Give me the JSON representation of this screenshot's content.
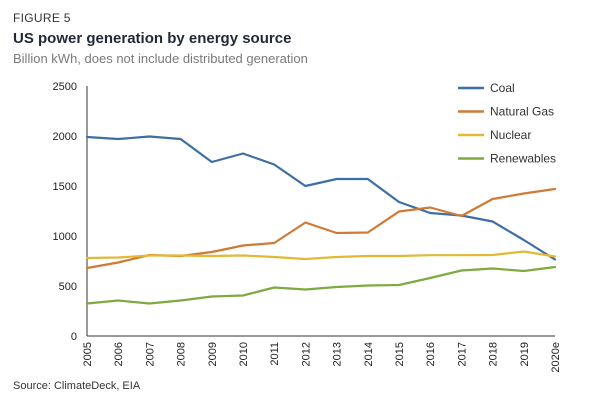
{
  "header": {
    "figure_label": "FIGURE 5",
    "title": "US power generation by energy source",
    "subtitle": "Billion kWh, does not include distributed generation"
  },
  "footer": {
    "source": "Source: ClimateDeck, EIA"
  },
  "chart_data": {
    "type": "line",
    "title": "US power generation by energy source",
    "subtitle": "Billion kWh, does not include distributed generation",
    "xlabel": "",
    "ylabel": "",
    "x": [
      "2005",
      "2006",
      "2007",
      "2008",
      "2009",
      "2010",
      "2011",
      "2012",
      "2013",
      "2014",
      "2015",
      "2016",
      "2017",
      "2018",
      "2019",
      "2020e"
    ],
    "ylim": [
      0,
      2500
    ],
    "yticks": [
      0,
      500,
      1000,
      1500,
      2000,
      2500
    ],
    "grid": false,
    "legend_position": "top-right",
    "series": [
      {
        "name": "Coal",
        "color": "#3e6ea5",
        "values": [
          1990,
          1970,
          1995,
          1970,
          1740,
          1825,
          1715,
          1500,
          1570,
          1570,
          1340,
          1230,
          1205,
          1145,
          960,
          765
        ]
      },
      {
        "name": "Natural Gas",
        "color": "#d07a35",
        "values": [
          680,
          735,
          810,
          800,
          840,
          905,
          930,
          1135,
          1030,
          1035,
          1245,
          1285,
          1200,
          1370,
          1425,
          1470
        ]
      },
      {
        "name": "Nuclear",
        "color": "#e1b936",
        "values": [
          780,
          785,
          805,
          805,
          800,
          805,
          790,
          770,
          790,
          800,
          800,
          808,
          808,
          810,
          845,
          795
        ]
      },
      {
        "name": "Renewables",
        "color": "#7eaa3f",
        "values": [
          325,
          355,
          325,
          355,
          395,
          405,
          485,
          465,
          490,
          505,
          510,
          580,
          655,
          675,
          650,
          690
        ]
      }
    ]
  }
}
